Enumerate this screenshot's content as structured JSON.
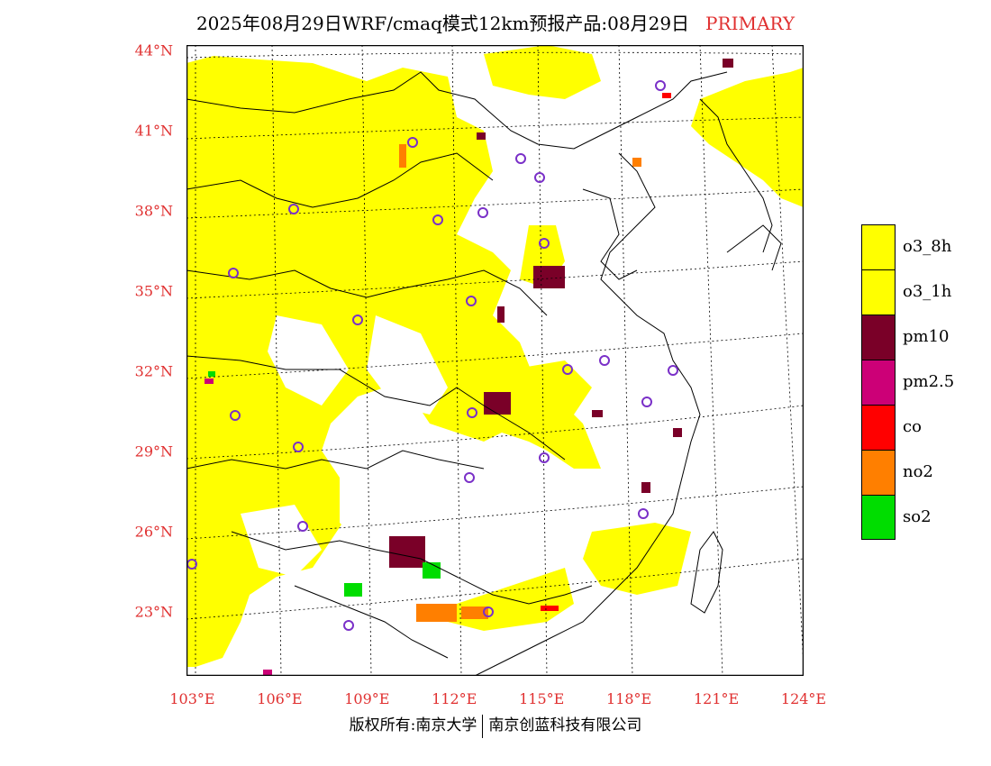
{
  "title": {
    "main": "2025年08月29日WRF/cmaq模式12km预报产品:08月29日",
    "tag": "PRIMARY",
    "tag_color": "#e03030"
  },
  "axes": {
    "lat_labels": [
      "44°N",
      "41°N",
      "38°N",
      "35°N",
      "32°N",
      "29°N",
      "26°N",
      "23°N"
    ],
    "lat_values": [
      44,
      41,
      38,
      35,
      32,
      29,
      26,
      23
    ],
    "lon_labels": [
      "103°E",
      "106°E",
      "109°E",
      "112°E",
      "115°E",
      "118°E",
      "121°E",
      "124°E"
    ],
    "lon_values": [
      103,
      106,
      109,
      112,
      115,
      118,
      121,
      124
    ],
    "label_color": "#e03030"
  },
  "legend": {
    "items": [
      {
        "label": "o3_8h",
        "color": "#ffff00"
      },
      {
        "label": "o3_1h",
        "color": "#ffff00"
      },
      {
        "label": "pm10",
        "color": "#7a0028"
      },
      {
        "label": "pm2.5",
        "color": "#cc0077"
      },
      {
        "label": "co",
        "color": "#ff0000"
      },
      {
        "label": "no2",
        "color": "#ff7f00"
      },
      {
        "label": "so2",
        "color": "#00dd00"
      }
    ]
  },
  "copyright": {
    "left": "版权所有:南京大学",
    "right": "南京创蓝科技有限公司"
  }
}
